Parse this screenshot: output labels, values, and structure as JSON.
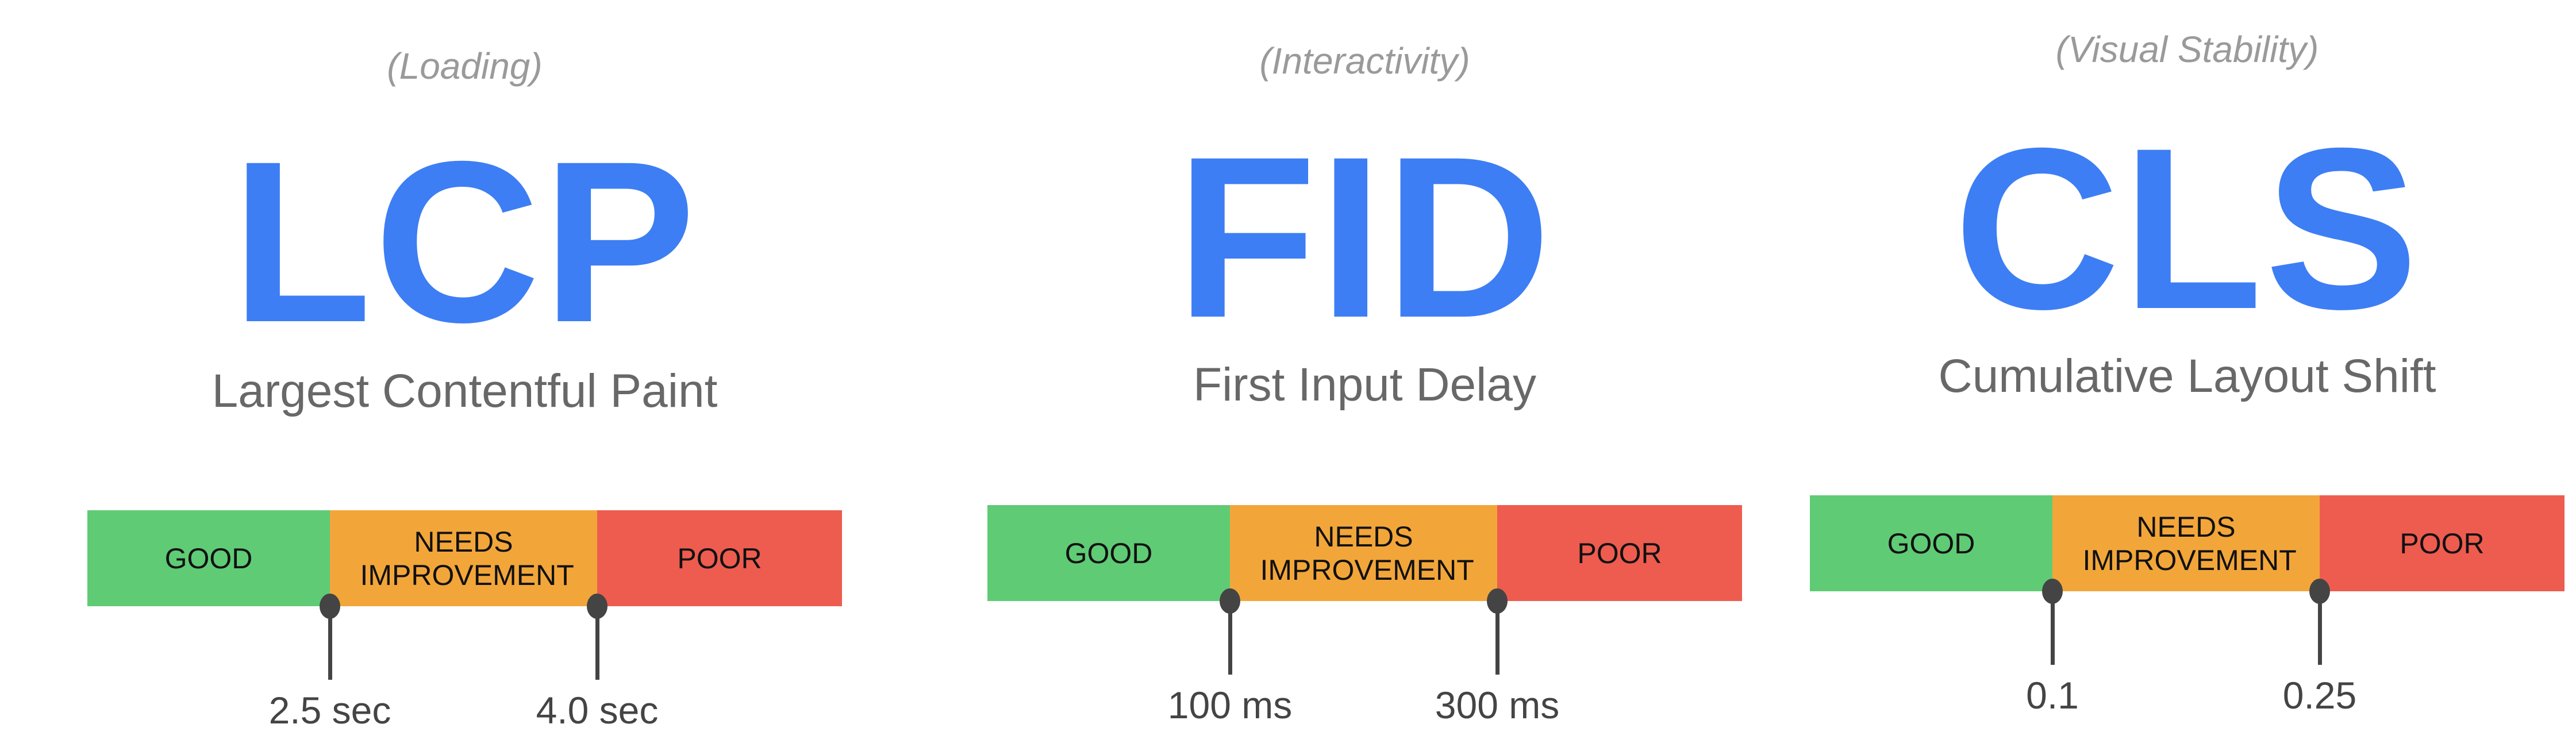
{
  "colors": {
    "accent": "#3d7ef4",
    "good": "#5fcb75",
    "needs_improvement": "#f2a63a",
    "poor": "#ee5c4f"
  },
  "panels": [
    {
      "category": "(Loading)",
      "acronym": "LCP",
      "name": "Largest Contentful Paint",
      "segments": {
        "good": "GOOD",
        "needs": "NEEDS IMPROVEMENT",
        "poor": "POOR"
      },
      "thresholds": [
        "2.5 sec",
        "4.0 sec"
      ]
    },
    {
      "category": "(Interactivity)",
      "acronym": "FID",
      "name": "First Input Delay",
      "segments": {
        "good": "GOOD",
        "needs": "NEEDS IMPROVEMENT",
        "poor": "POOR"
      },
      "thresholds": [
        "100 ms",
        "300 ms"
      ]
    },
    {
      "category": "(Visual Stability)",
      "acronym": "CLS",
      "name": "Cumulative Layout Shift",
      "segments": {
        "good": "GOOD",
        "needs": "NEEDS IMPROVEMENT",
        "poor": "POOR"
      },
      "thresholds": [
        "0.1",
        "0.25"
      ]
    }
  ]
}
